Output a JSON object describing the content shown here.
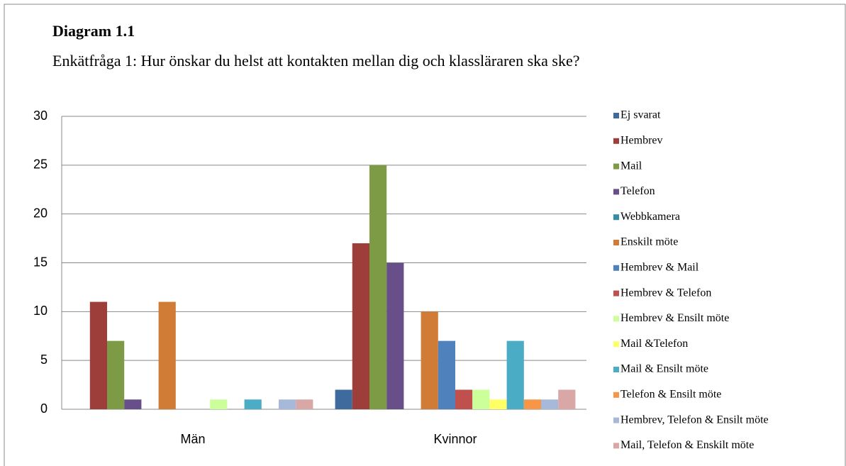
{
  "chart_data": {
    "type": "bar",
    "title": "Diagram 1.1",
    "subtitle": "Enkätfråga 1: Hur önskar du helst att kontakten mellan dig och klassläraren ska ske?",
    "categories": [
      "Män",
      "Kvinnor"
    ],
    "series": [
      {
        "name": "Ej svarat",
        "color": "#3F6A9E",
        "values": [
          0,
          2
        ]
      },
      {
        "name": "Hembrev",
        "color": "#9E3E3B",
        "values": [
          11,
          17
        ]
      },
      {
        "name": "Mail",
        "color": "#7D9A45",
        "values": [
          7,
          25
        ]
      },
      {
        "name": "Telefon",
        "color": "#684F8A",
        "values": [
          1,
          15
        ]
      },
      {
        "name": "Webbkamera",
        "color": "#358CA3",
        "values": [
          0,
          0
        ]
      },
      {
        "name": "Enskilt möte",
        "color": "#D07C36",
        "values": [
          11,
          10
        ]
      },
      {
        "name": "Hembrev & Mail",
        "color": "#4F81BD",
        "values": [
          0,
          7
        ]
      },
      {
        "name": "Hembrev & Telefon",
        "color": "#C0504D",
        "values": [
          0,
          2
        ]
      },
      {
        "name": "Hembrev & Ensilt möte",
        "color": "#CCFF99",
        "values": [
          1,
          2
        ]
      },
      {
        "name": "Mail &Telefon",
        "color": "#FFFF66",
        "values": [
          0,
          1
        ]
      },
      {
        "name": "Mail & Ensilt möte",
        "color": "#4BACC6",
        "values": [
          1,
          7
        ]
      },
      {
        "name": "Telefon & Ensilt möte",
        "color": "#F79646",
        "values": [
          0,
          1
        ]
      },
      {
        "name": "Hembrev, Telefon & Ensilt möte",
        "color": "#A7B9DA",
        "values": [
          1,
          1
        ]
      },
      {
        "name": "Mail, Telefon & Enskilt möte",
        "color": "#D9A7A6",
        "values": [
          1,
          2
        ]
      }
    ],
    "ylim": [
      0,
      30
    ],
    "yticks": [
      0,
      5,
      10,
      15,
      20,
      25,
      30
    ],
    "grid": true
  }
}
